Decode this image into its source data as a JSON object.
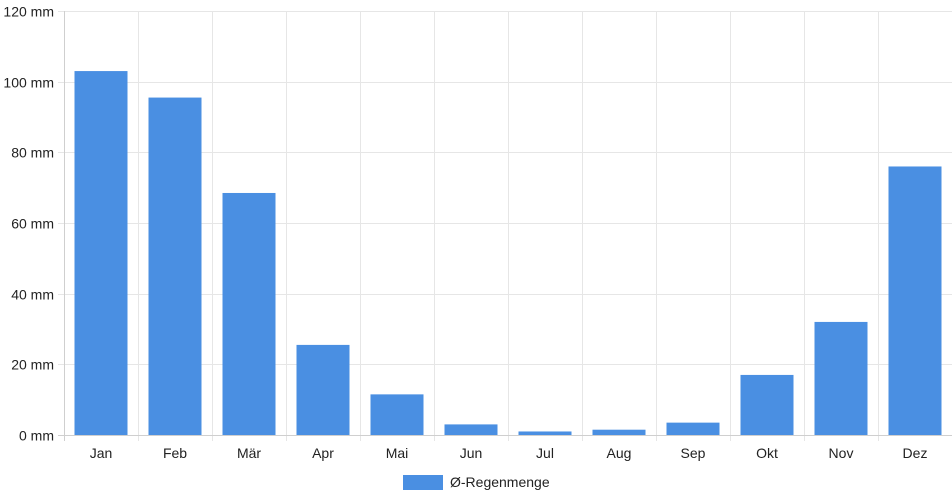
{
  "chart_data": {
    "type": "bar",
    "categories": [
      "Jan",
      "Feb",
      "Mär",
      "Apr",
      "Mai",
      "Jun",
      "Jul",
      "Aug",
      "Sep",
      "Okt",
      "Nov",
      "Dez"
    ],
    "series": [
      {
        "name": "Ø-Regenmenge",
        "values": [
          103,
          95.5,
          68.5,
          25.5,
          11.5,
          3,
          1,
          1.5,
          3.5,
          17,
          32,
          76
        ],
        "color": "#4a8fe2"
      }
    ],
    "ylim": [
      0,
      120
    ],
    "yticks": [
      0,
      20,
      40,
      60,
      80,
      100,
      120
    ],
    "ytick_format": "{v} mm",
    "grid": true,
    "legend_position": "bottom"
  }
}
